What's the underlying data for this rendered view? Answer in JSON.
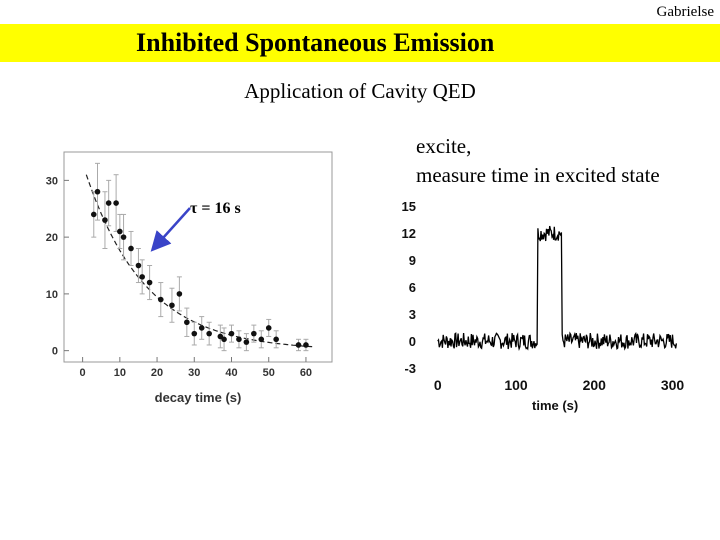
{
  "slide": {
    "author": "Gabrielse",
    "title": "Inhibited Spontaneous Emission",
    "subtitle": "Application of Cavity QED",
    "note_line1": "excite,",
    "note_line2": "measure time in excited state",
    "tau_annotation": "τ = 16 s",
    "arrow_color": "#3a44c8",
    "title_bar_color": "#ffff00"
  },
  "chart_data": [
    {
      "type": "scatter",
      "title": "",
      "xlabel": "decay time (s)",
      "ylabel": "",
      "xlim": [
        -5,
        67
      ],
      "ylim": [
        -2,
        35
      ],
      "x_ticks": [
        0,
        10,
        20,
        30,
        40,
        50,
        60
      ],
      "y_ticks": [
        0,
        10,
        20,
        30
      ],
      "grid": false,
      "annotation": "τ = 16 s",
      "series": [
        {
          "x": [
            3,
            4,
            6,
            7,
            9,
            10,
            11,
            13,
            15,
            16,
            18,
            21,
            24,
            26,
            28,
            30,
            32,
            34,
            37,
            38,
            40,
            42,
            44,
            46,
            48,
            50,
            52,
            58,
            60
          ],
          "y": [
            24,
            28,
            23,
            26,
            26,
            21,
            20,
            18,
            15,
            13,
            12,
            9,
            8,
            10,
            5,
            3,
            4,
            3,
            2.5,
            2,
            3,
            2,
            1.5,
            3,
            2,
            4,
            2,
            1,
            1
          ],
          "yerr": [
            4,
            5,
            5,
            4,
            5,
            3,
            4,
            3,
            3,
            3,
            3,
            3,
            3,
            3,
            2.5,
            2,
            2,
            2,
            2,
            2,
            1.5,
            1.5,
            1.5,
            1.5,
            1.5,
            1.5,
            1.5,
            1,
            1
          ]
        },
        {
          "type": "fit",
          "model": "exponential",
          "amplitude": 33,
          "tau": 16,
          "x_range": [
            1,
            62
          ]
        }
      ]
    },
    {
      "type": "line",
      "title": "",
      "xlabel": "time (s)",
      "ylabel": "",
      "xlim": [
        -15,
        330
      ],
      "ylim": [
        -3,
        15
      ],
      "x_ticks": [
        0,
        100,
        200,
        300
      ],
      "y_ticks": [
        -3,
        0,
        3,
        6,
        9,
        12,
        15
      ],
      "grid": false,
      "signal": {
        "baseline": 0,
        "pulse_level": 12,
        "pulse_start": 128,
        "pulse_end": 158,
        "x_range": [
          0,
          305
        ],
        "noise_amplitude": 0.9
      }
    }
  ]
}
